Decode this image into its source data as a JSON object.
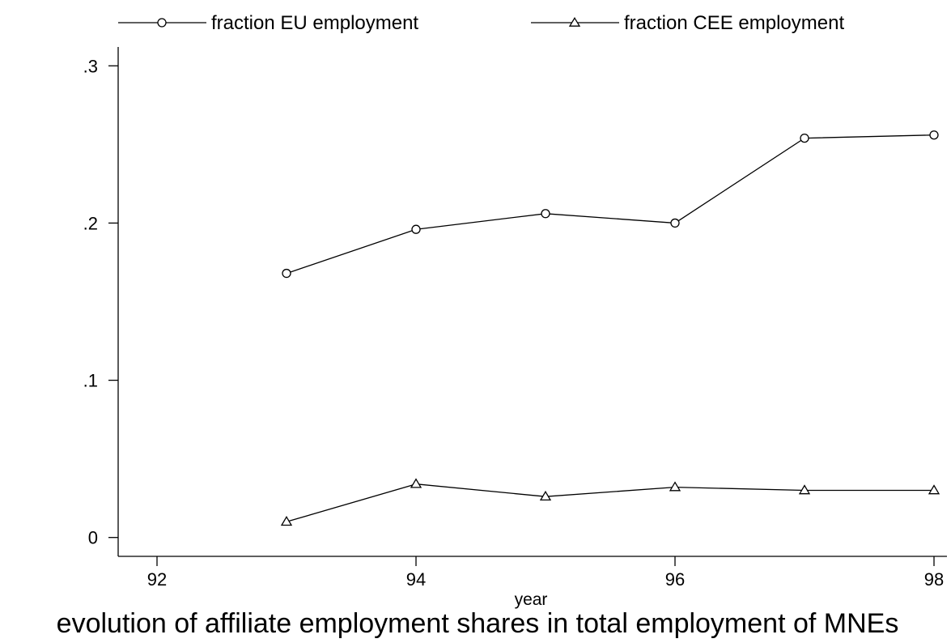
{
  "chart_data": {
    "type": "line",
    "title": "",
    "caption": "evolution of affiliate employment shares in total employment of MNEs",
    "xlabel": "year",
    "ylabel": "",
    "xlim": [
      91.7,
      98.1
    ],
    "ylim": [
      -0.012,
      0.312
    ],
    "x_ticks": [
      92,
      94,
      96,
      98
    ],
    "x_tick_labels": [
      "92",
      "94",
      "96",
      "98"
    ],
    "y_ticks": [
      0,
      0.1,
      0.2,
      0.3
    ],
    "y_tick_labels": [
      "0",
      ".1",
      ".2",
      ".3"
    ],
    "grid": false,
    "legend_position": "top",
    "series": [
      {
        "name": "fraction EU employment",
        "marker": "circle",
        "x": [
          93,
          94,
          95,
          96,
          97,
          98
        ],
        "y": [
          0.168,
          0.196,
          0.206,
          0.2,
          0.254,
          0.256
        ]
      },
      {
        "name": "fraction CEE employment",
        "marker": "triangle",
        "x": [
          93,
          94,
          95,
          96,
          97,
          98
        ],
        "y": [
          0.01,
          0.034,
          0.026,
          0.032,
          0.03,
          0.03
        ]
      }
    ]
  }
}
